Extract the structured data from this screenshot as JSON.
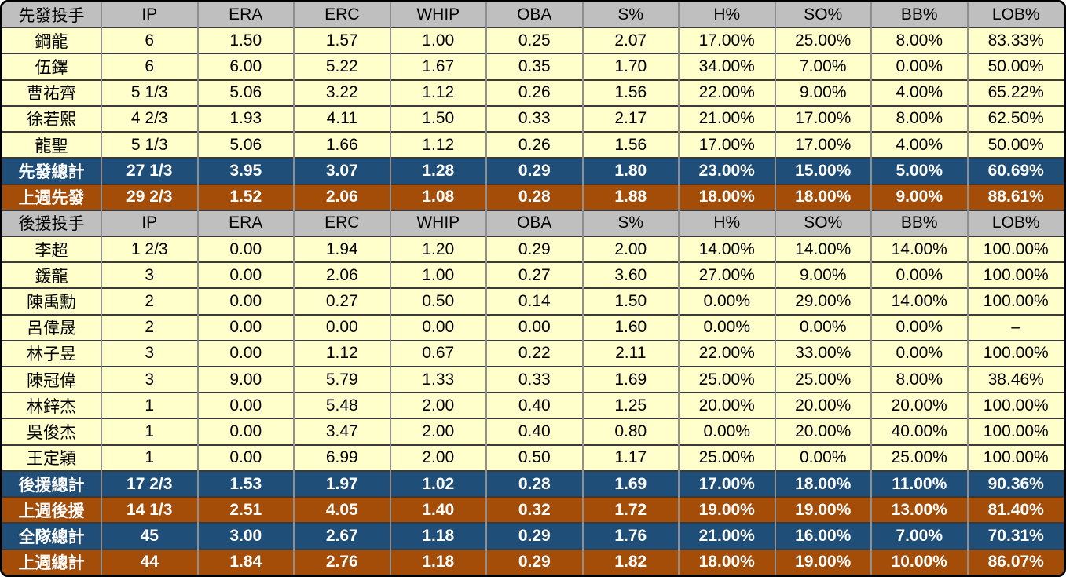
{
  "colors": {
    "header_bg": "#bfbfbf",
    "player_row_bg": "#ffffcc",
    "total_row_bg": "#1f4e79",
    "lastweek_row_bg": "#a34d08",
    "total_row_text": "#ffffff",
    "grid_vertical": "#8f8f8f",
    "grid_horizontal": "#3a3a3a",
    "outer_border": "#000000"
  },
  "chart_data": {
    "type": "table",
    "columns": [
      "IP",
      "ERA",
      "ERC",
      "WHIP",
      "OBA",
      "S%",
      "H%",
      "SO%",
      "BB%",
      "LOB%"
    ],
    "sections": [
      {
        "header": "先發投手",
        "rows": [
          {
            "row_type": "player",
            "name": "鋼龍",
            "values": [
              "6",
              "1.50",
              "1.57",
              "1.00",
              "0.25",
              "2.07",
              "17.00%",
              "25.00%",
              "8.00%",
              "83.33%"
            ]
          },
          {
            "row_type": "player",
            "name": "伍鐸",
            "values": [
              "6",
              "6.00",
              "5.22",
              "1.67",
              "0.35",
              "1.70",
              "34.00%",
              "7.00%",
              "0.00%",
              "50.00%"
            ]
          },
          {
            "row_type": "player",
            "name": "曹祐齊",
            "values": [
              "5 1/3",
              "5.06",
              "3.22",
              "1.12",
              "0.26",
              "1.56",
              "22.00%",
              "9.00%",
              "4.00%",
              "65.22%"
            ]
          },
          {
            "row_type": "player",
            "name": "徐若熙",
            "values": [
              "4 2/3",
              "1.93",
              "4.11",
              "1.50",
              "0.33",
              "2.17",
              "21.00%",
              "17.00%",
              "8.00%",
              "62.50%"
            ]
          },
          {
            "row_type": "player",
            "name": "龍聖",
            "values": [
              "5 1/3",
              "5.06",
              "1.66",
              "1.12",
              "0.26",
              "1.56",
              "17.00%",
              "17.00%",
              "4.00%",
              "50.00%"
            ]
          },
          {
            "row_type": "total",
            "name": "先發總計",
            "values": [
              "27 1/3",
              "3.95",
              "3.07",
              "1.28",
              "0.29",
              "1.80",
              "23.00%",
              "15.00%",
              "5.00%",
              "60.69%"
            ]
          },
          {
            "row_type": "lastweek",
            "name": "上週先發",
            "values": [
              "29 2/3",
              "1.52",
              "2.06",
              "1.08",
              "0.28",
              "1.88",
              "18.00%",
              "18.00%",
              "9.00%",
              "88.61%"
            ]
          }
        ]
      },
      {
        "header": "後援投手",
        "rows": [
          {
            "row_type": "player",
            "name": "李超",
            "values": [
              "1 2/3",
              "0.00",
              "1.94",
              "1.20",
              "0.29",
              "2.00",
              "14.00%",
              "14.00%",
              "14.00%",
              "100.00%"
            ]
          },
          {
            "row_type": "player",
            "name": "鍰龍",
            "values": [
              "3",
              "0.00",
              "2.06",
              "1.00",
              "0.27",
              "3.60",
              "27.00%",
              "9.00%",
              "0.00%",
              "100.00%"
            ]
          },
          {
            "row_type": "player",
            "name": "陳禹勳",
            "values": [
              "2",
              "0.00",
              "0.27",
              "0.50",
              "0.14",
              "1.50",
              "0.00%",
              "29.00%",
              "14.00%",
              "100.00%"
            ]
          },
          {
            "row_type": "player",
            "name": "呂偉晟",
            "values": [
              "2",
              "0.00",
              "0.00",
              "0.00",
              "0.00",
              "1.60",
              "0.00%",
              "0.00%",
              "0.00%",
              "–"
            ]
          },
          {
            "row_type": "player",
            "name": "林子昱",
            "values": [
              "3",
              "0.00",
              "1.12",
              "0.67",
              "0.22",
              "2.11",
              "22.00%",
              "33.00%",
              "0.00%",
              "100.00%"
            ]
          },
          {
            "row_type": "player",
            "name": "陳冠偉",
            "values": [
              "3",
              "9.00",
              "5.79",
              "1.33",
              "0.33",
              "1.69",
              "25.00%",
              "25.00%",
              "8.00%",
              "38.46%"
            ]
          },
          {
            "row_type": "player",
            "name": "林鋅杰",
            "values": [
              "1",
              "0.00",
              "5.48",
              "2.00",
              "0.40",
              "1.25",
              "20.00%",
              "20.00%",
              "20.00%",
              "100.00%"
            ]
          },
          {
            "row_type": "player",
            "name": "吳俊杰",
            "values": [
              "1",
              "0.00",
              "3.47",
              "2.00",
              "0.40",
              "0.80",
              "0.00%",
              "20.00%",
              "40.00%",
              "100.00%"
            ]
          },
          {
            "row_type": "player",
            "name": "王定穎",
            "values": [
              "1",
              "0.00",
              "6.99",
              "2.00",
              "0.50",
              "1.17",
              "25.00%",
              "0.00%",
              "25.00%",
              "100.00%"
            ]
          },
          {
            "row_type": "total",
            "name": "後援總計",
            "values": [
              "17 2/3",
              "1.53",
              "1.97",
              "1.02",
              "0.28",
              "1.69",
              "17.00%",
              "18.00%",
              "11.00%",
              "90.36%"
            ]
          },
          {
            "row_type": "lastweek",
            "name": "上週後援",
            "values": [
              "14 1/3",
              "2.51",
              "4.05",
              "1.40",
              "0.32",
              "1.72",
              "19.00%",
              "19.00%",
              "13.00%",
              "81.40%"
            ]
          },
          {
            "row_type": "total",
            "name": "全隊總計",
            "values": [
              "45",
              "3.00",
              "2.67",
              "1.18",
              "0.29",
              "1.76",
              "21.00%",
              "16.00%",
              "7.00%",
              "70.31%"
            ]
          },
          {
            "row_type": "lastweek",
            "name": "上週總計",
            "values": [
              "44",
              "1.84",
              "2.76",
              "1.18",
              "0.29",
              "1.82",
              "18.00%",
              "19.00%",
              "10.00%",
              "86.07%"
            ]
          }
        ]
      }
    ]
  }
}
